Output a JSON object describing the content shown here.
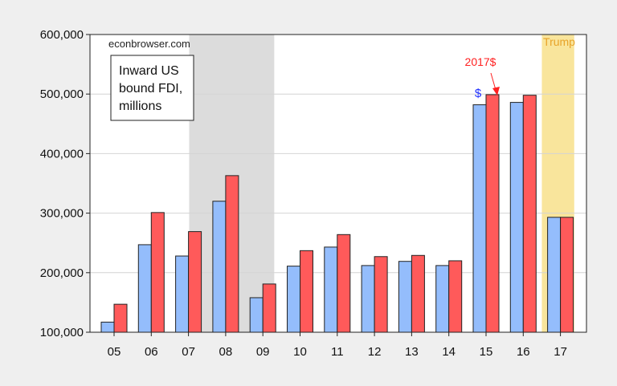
{
  "chart_data": {
    "type": "bar",
    "categories": [
      "05",
      "06",
      "07",
      "08",
      "09",
      "10",
      "11",
      "12",
      "13",
      "14",
      "15",
      "16",
      "17"
    ],
    "series": [
      {
        "color": "#94bdfc",
        "values": [
          117000,
          247000,
          228000,
          320000,
          158000,
          211000,
          243000,
          212000,
          219000,
          212000,
          482000,
          486000,
          293000
        ]
      },
      {
        "color": "#ff5a5a",
        "values": [
          147000,
          301000,
          269000,
          363000,
          181000,
          237000,
          264000,
          227000,
          229000,
          220000,
          499000,
          498000,
          293000
        ]
      }
    ],
    "ylim": [
      100000,
      600000
    ],
    "yticks": [
      100000,
      200000,
      300000,
      400000,
      500000,
      600000
    ],
    "ytick_labels": [
      "100,000",
      "200,000",
      "300,000",
      "400,000",
      "500,000",
      "600,000"
    ],
    "grid": true,
    "shaded_regions": [
      {
        "from": "07",
        "to": "09",
        "color": "#dcdcdc",
        "label": ""
      },
      {
        "from": "17",
        "to": "17",
        "color": "#f9e59c",
        "label": "Trump"
      }
    ],
    "watermark": "econbrowser.com",
    "legend_box": [
      "Inward US",
      "bound FDI,",
      "millions"
    ],
    "annotations": {
      "nominal": "$",
      "real": "2017$"
    }
  }
}
